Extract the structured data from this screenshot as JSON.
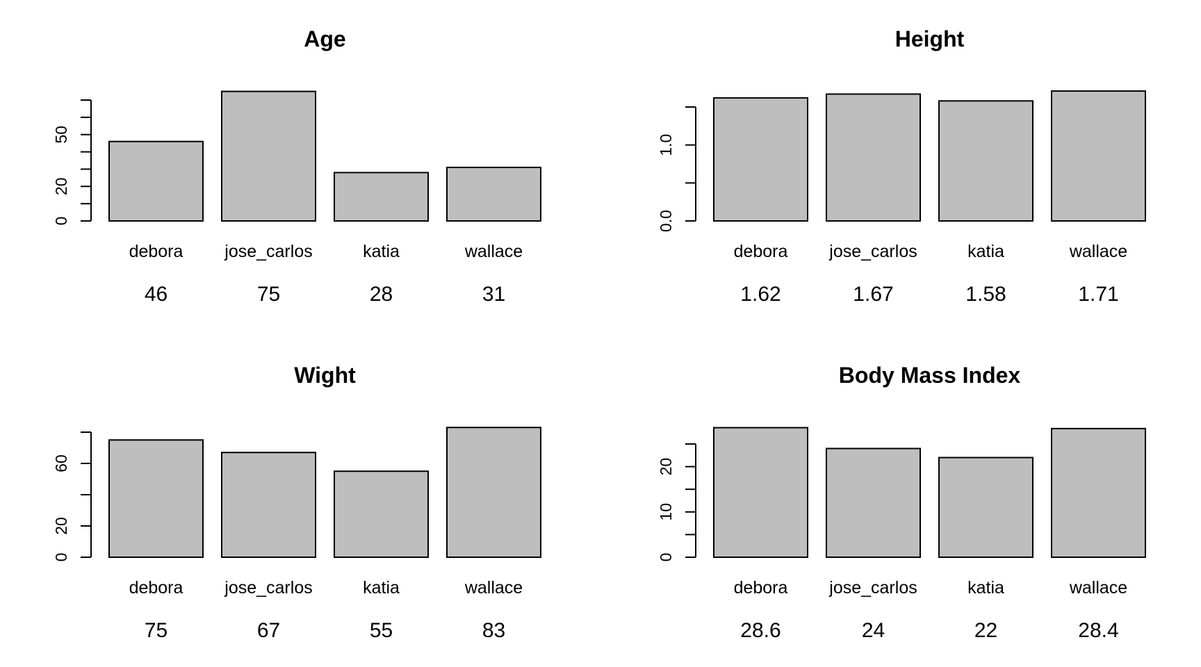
{
  "chart_data": [
    {
      "type": "bar",
      "title": "Age",
      "categories": [
        "debora",
        "jose_carlos",
        "katia",
        "wallace"
      ],
      "values": [
        46,
        75,
        28,
        31
      ],
      "value_labels": [
        "46",
        "75",
        "28",
        "31"
      ],
      "ylim": [
        0,
        70
      ],
      "ytick_labels": [
        0,
        20,
        50
      ],
      "ytick_minor": [
        10,
        30,
        40,
        60,
        70
      ],
      "bar_color": "#bebebe"
    },
    {
      "type": "bar",
      "title": "Height",
      "categories": [
        "debora",
        "jose_carlos",
        "katia",
        "wallace"
      ],
      "values": [
        1.62,
        1.67,
        1.58,
        1.71
      ],
      "value_labels": [
        "1.62",
        "1.67",
        "1.58",
        "1.71"
      ],
      "ylim": [
        0,
        1.5
      ],
      "ytick_labels": [
        0.0,
        1.0
      ],
      "ytick_label_format": 1,
      "ytick_minor": [
        0.5,
        1.5
      ],
      "bar_color": "#bebebe"
    },
    {
      "type": "bar",
      "title": "Wight",
      "categories": [
        "debora",
        "jose_carlos",
        "katia",
        "wallace"
      ],
      "values": [
        75,
        67,
        55,
        83
      ],
      "value_labels": [
        "75",
        "67",
        "55",
        "83"
      ],
      "ylim": [
        0,
        80
      ],
      "ytick_labels": [
        0,
        20,
        60
      ],
      "ytick_minor": [
        40,
        80
      ],
      "bar_color": "#bebebe"
    },
    {
      "type": "bar",
      "title": "Body Mass Index",
      "categories": [
        "debora",
        "jose_carlos",
        "katia",
        "wallace"
      ],
      "values": [
        28.6,
        24,
        22,
        28.4
      ],
      "value_labels": [
        "28.6",
        "24",
        "22",
        "28.4"
      ],
      "ylim": [
        0,
        25
      ],
      "ytick_labels": [
        0,
        10,
        20
      ],
      "ytick_minor": [
        5,
        15,
        25
      ],
      "bar_color": "#bebebe"
    }
  ]
}
